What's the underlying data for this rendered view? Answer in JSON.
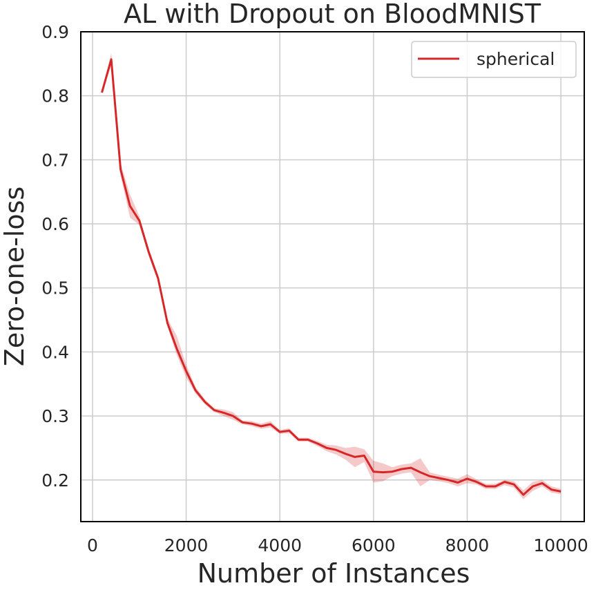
{
  "chart_data": {
    "type": "line",
    "title": "AL with Dropout on BloodMNIST",
    "xlabel": "Number of Instances",
    "ylabel": "Zero-one-loss",
    "xlim": [
      -250,
      10500
    ],
    "ylim": [
      0.135,
      0.9
    ],
    "xticks": [
      0,
      2000,
      4000,
      6000,
      8000,
      10000
    ],
    "yticks": [
      0.2,
      0.3,
      0.4,
      0.5,
      0.6,
      0.7,
      0.8,
      0.9
    ],
    "grid": true,
    "legend_position": "top-right",
    "colors": {
      "line": "#d62728",
      "band": "#d62728"
    },
    "series": [
      {
        "name": "spherical",
        "x": [
          200,
          400,
          600,
          800,
          1000,
          1200,
          1400,
          1600,
          1800,
          2000,
          2200,
          2400,
          2600,
          2800,
          3000,
          3200,
          3400,
          3600,
          3800,
          4000,
          4200,
          4400,
          4600,
          4800,
          5000,
          5200,
          5400,
          5600,
          5800,
          6000,
          6200,
          6400,
          6600,
          6800,
          7000,
          7200,
          7400,
          7600,
          7800,
          8000,
          8200,
          8400,
          8600,
          8800,
          9000,
          9200,
          9400,
          9600,
          9800,
          10000
        ],
        "y": [
          0.805,
          0.857,
          0.685,
          0.628,
          0.605,
          0.556,
          0.515,
          0.445,
          0.405,
          0.37,
          0.34,
          0.322,
          0.309,
          0.305,
          0.3,
          0.29,
          0.288,
          0.284,
          0.287,
          0.275,
          0.277,
          0.263,
          0.263,
          0.257,
          0.25,
          0.247,
          0.241,
          0.236,
          0.238,
          0.213,
          0.212,
          0.213,
          0.217,
          0.219,
          0.212,
          0.206,
          0.203,
          0.2,
          0.196,
          0.202,
          0.197,
          0.19,
          0.19,
          0.197,
          0.193,
          0.177,
          0.19,
          0.195,
          0.185,
          0.182
        ],
        "y_lower": [
          0.805,
          0.847,
          0.675,
          0.61,
          0.598,
          0.55,
          0.51,
          0.44,
          0.395,
          0.36,
          0.335,
          0.318,
          0.306,
          0.3,
          0.294,
          0.287,
          0.284,
          0.28,
          0.282,
          0.272,
          0.273,
          0.26,
          0.26,
          0.253,
          0.245,
          0.24,
          0.232,
          0.22,
          0.228,
          0.196,
          0.198,
          0.206,
          0.21,
          0.212,
          0.19,
          0.2,
          0.198,
          0.195,
          0.19,
          0.195,
          0.193,
          0.186,
          0.186,
          0.192,
          0.188,
          0.17,
          0.183,
          0.19,
          0.18,
          0.178
        ],
        "y_upper": [
          0.805,
          0.867,
          0.695,
          0.646,
          0.612,
          0.562,
          0.52,
          0.452,
          0.425,
          0.38,
          0.345,
          0.326,
          0.312,
          0.31,
          0.306,
          0.293,
          0.292,
          0.288,
          0.292,
          0.278,
          0.281,
          0.266,
          0.266,
          0.261,
          0.255,
          0.254,
          0.25,
          0.252,
          0.248,
          0.23,
          0.226,
          0.22,
          0.224,
          0.226,
          0.234,
          0.212,
          0.208,
          0.205,
          0.202,
          0.209,
          0.201,
          0.194,
          0.194,
          0.2,
          0.198,
          0.184,
          0.197,
          0.2,
          0.19,
          0.186
        ]
      }
    ]
  }
}
